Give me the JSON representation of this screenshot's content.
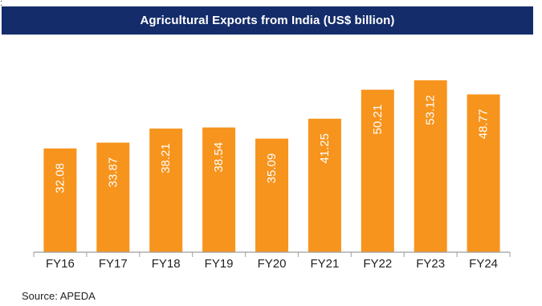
{
  "stray_mark": ":",
  "chart_data": {
    "type": "bar",
    "title": "Agricultural Exports from India (US$ billion)",
    "categories": [
      "FY16",
      "FY17",
      "FY18",
      "FY19",
      "FY20",
      "FY21",
      "FY22",
      "FY23",
      "FY24"
    ],
    "values": [
      32.08,
      33.87,
      38.21,
      38.54,
      35.09,
      41.25,
      50.21,
      53.12,
      48.77
    ],
    "value_labels": [
      "32.08",
      "33.87",
      "38.21",
      "38.54",
      "35.09",
      "41.25",
      "50.21",
      "53.12",
      "48.77"
    ],
    "ylim": [
      0,
      53.12
    ],
    "xlabel": "",
    "ylabel": "",
    "grid": false,
    "legend": "none",
    "bar_color": "#f7941d",
    "axis_color": "#9e9e9e"
  },
  "source": "Source: APEDA"
}
